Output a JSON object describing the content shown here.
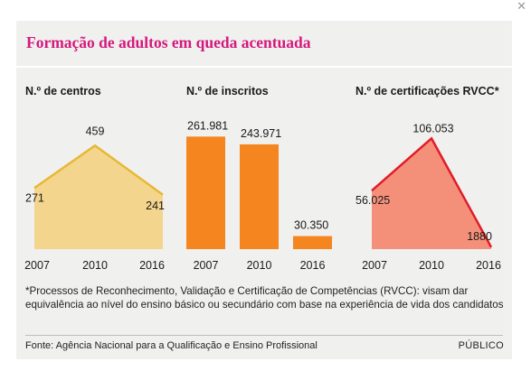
{
  "header": {
    "title": "Formação de adultos em queda acentuada"
  },
  "close_icon": "close-icon",
  "colors": {
    "title": "#d4197d",
    "centros_fill": "#f4d58d",
    "centros_line": "#e6b833",
    "inscritos_bar": "#f5851f",
    "certificacoes_fill": "#f4907a",
    "certificacoes_line": "#e11d28"
  },
  "chart_data": [
    {
      "type": "area",
      "title": "N.º de centros",
      "categories": [
        "2007",
        "2010",
        "2016"
      ],
      "values": [
        271,
        459,
        241
      ],
      "labels": [
        "271",
        "459",
        "241"
      ],
      "ylim": [
        0,
        500
      ]
    },
    {
      "type": "bar",
      "title": "N.º de inscritos",
      "categories": [
        "2007",
        "2010",
        "2016"
      ],
      "values": [
        261981,
        243971,
        30350
      ],
      "labels": [
        "261.981",
        "243.971",
        "30.350"
      ],
      "ylim": [
        0,
        290000
      ]
    },
    {
      "type": "area",
      "title": "N.º de certificações RVCC*",
      "categories": [
        "2007",
        "2010",
        "2016"
      ],
      "values": [
        56025,
        106053,
        1880
      ],
      "labels": [
        "56.025",
        "106.053",
        "1880"
      ],
      "ylim": [
        0,
        115000
      ]
    }
  ],
  "footnote": "*Processos de Reconhecimento, Validação e Certificação de Competências (RVCC): visam dar equivalência ao nível do ensino básico ou secundário com base na experiência de vida dos candidatos",
  "source": "Fonte: Agência Nacional para a Qualificação e Ensino Profissional",
  "brand": "PÚBLICO"
}
